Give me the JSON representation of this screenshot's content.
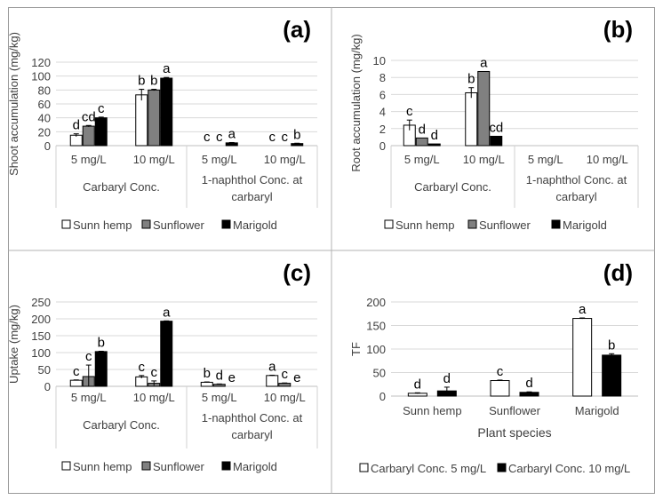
{
  "chart_data": [
    {
      "panel_label": "(a)",
      "type": "bar",
      "ylabel": "Shoot accumulation (mg/kg)",
      "ylim": [
        0,
        120
      ],
      "yticks": [
        0,
        20,
        40,
        60,
        80,
        100,
        120
      ],
      "categories": [
        "5 mg/L",
        "10 mg/L",
        "5 mg/L",
        "10 mg/L"
      ],
      "groups": [
        {
          "label": "Carbaryl Conc.",
          "categories": [
            "5 mg/L",
            "10 mg/L"
          ]
        },
        {
          "label": "1-naphthol Conc. at carbaryl",
          "categories": [
            "5 mg/L",
            "10 mg/L"
          ]
        }
      ],
      "series": [
        {
          "name": "Sunn hemp",
          "color": "#ffffff",
          "values": [
            15,
            73,
            0,
            0
          ],
          "errors": [
            2,
            8,
            0,
            0
          ],
          "labels": [
            "d",
            "b",
            "c",
            "c"
          ]
        },
        {
          "name": "Sunflower",
          "color": "#808080",
          "values": [
            28,
            80,
            0,
            0
          ],
          "errors": [
            1,
            1,
            0,
            0
          ],
          "labels": [
            "cd",
            "b",
            "c",
            "c"
          ]
        },
        {
          "name": "Marigold",
          "color": "#000000",
          "values": [
            40,
            97,
            4,
            3
          ],
          "errors": [
            1,
            1,
            0.5,
            0.5
          ],
          "labels": [
            "c",
            "a",
            "a",
            "b"
          ]
        }
      ],
      "legend_position": "bottom",
      "grid": true
    },
    {
      "panel_label": "(b)",
      "type": "bar",
      "ylabel": "Root accumulation (mg/kg)",
      "ylim": [
        0,
        10
      ],
      "yticks": [
        0,
        2,
        4,
        6,
        8,
        10
      ],
      "categories": [
        "5 mg/L",
        "10 mg/L",
        "5 mg/L",
        "10 mg/L"
      ],
      "groups": [
        {
          "label": "Carbaryl Conc.",
          "categories": [
            "5 mg/L",
            "10 mg/L"
          ]
        },
        {
          "label": "1-naphthol Conc. at carbaryl",
          "categories": [
            "5 mg/L",
            "10 mg/L"
          ]
        }
      ],
      "series": [
        {
          "name": "Sunn hemp",
          "color": "#ffffff",
          "values": [
            2.4,
            6.2,
            0,
            0
          ],
          "errors": [
            0.6,
            0.6,
            0,
            0
          ],
          "labels": [
            "c",
            "b",
            "",
            ""
          ]
        },
        {
          "name": "Sunflower",
          "color": "#808080",
          "values": [
            0.9,
            8.7,
            0,
            0
          ],
          "errors": [
            0,
            0,
            0,
            0
          ],
          "labels": [
            "d",
            "a",
            "",
            ""
          ]
        },
        {
          "name": "Marigold",
          "color": "#000000",
          "values": [
            0.2,
            1.1,
            0,
            0
          ],
          "errors": [
            0,
            0,
            0,
            0
          ],
          "labels": [
            "d",
            "cd",
            "",
            ""
          ]
        }
      ],
      "legend_position": "bottom",
      "grid": true
    },
    {
      "panel_label": "(c)",
      "type": "bar",
      "ylabel": "Uptake (mg/kg)",
      "ylim": [
        0,
        250
      ],
      "yticks": [
        0,
        50,
        100,
        150,
        200,
        250
      ],
      "categories": [
        "5 mg/L",
        "10 mg/L",
        "5 mg/L",
        "10 mg/L"
      ],
      "groups": [
        {
          "label": "Carbaryl Conc.",
          "categories": [
            "5 mg/L",
            "10 mg/L"
          ]
        },
        {
          "label": "1-naphthol Conc. at carbaryl",
          "categories": [
            "5 mg/L",
            "10 mg/L"
          ]
        }
      ],
      "series": [
        {
          "name": "Sunn hemp",
          "color": "#ffffff",
          "values": [
            18,
            28,
            12,
            32
          ],
          "errors": [
            1,
            4,
            1,
            1
          ],
          "labels": [
            "c",
            "c",
            "b",
            "a"
          ]
        },
        {
          "name": "Sunflower",
          "color": "#808080",
          "values": [
            29,
            9,
            6,
            9
          ],
          "errors": [
            34,
            7,
            1,
            1
          ],
          "labels": [
            "c",
            "c",
            "d",
            "c"
          ]
        },
        {
          "name": "Marigold",
          "color": "#000000",
          "values": [
            103,
            193,
            0,
            0
          ],
          "errors": [
            1,
            1,
            0,
            0
          ],
          "labels": [
            "b",
            "a",
            "e",
            "e"
          ]
        }
      ],
      "legend_position": "bottom",
      "grid": true
    },
    {
      "panel_label": "(d)",
      "type": "bar",
      "ylabel": "TF",
      "xlabel": "Plant species",
      "ylim": [
        0,
        200
      ],
      "yticks": [
        0,
        50,
        100,
        150,
        200
      ],
      "categories": [
        "Sunn hemp",
        "Sunflower",
        "Marigold"
      ],
      "series": [
        {
          "name": "Carbaryl Conc.  5 mg/L",
          "color": "#ffffff",
          "values": [
            6,
            33,
            165
          ],
          "errors": [
            1,
            1,
            1
          ],
          "labels": [
            "d",
            "c",
            "a"
          ]
        },
        {
          "name": "Carbaryl Conc.  10 mg/L",
          "color": "#000000",
          "values": [
            11,
            8,
            87
          ],
          "errors": [
            8,
            1,
            3
          ],
          "labels": [
            "d",
            "d",
            "b"
          ]
        }
      ],
      "legend_position": "bottom",
      "grid": true
    }
  ]
}
